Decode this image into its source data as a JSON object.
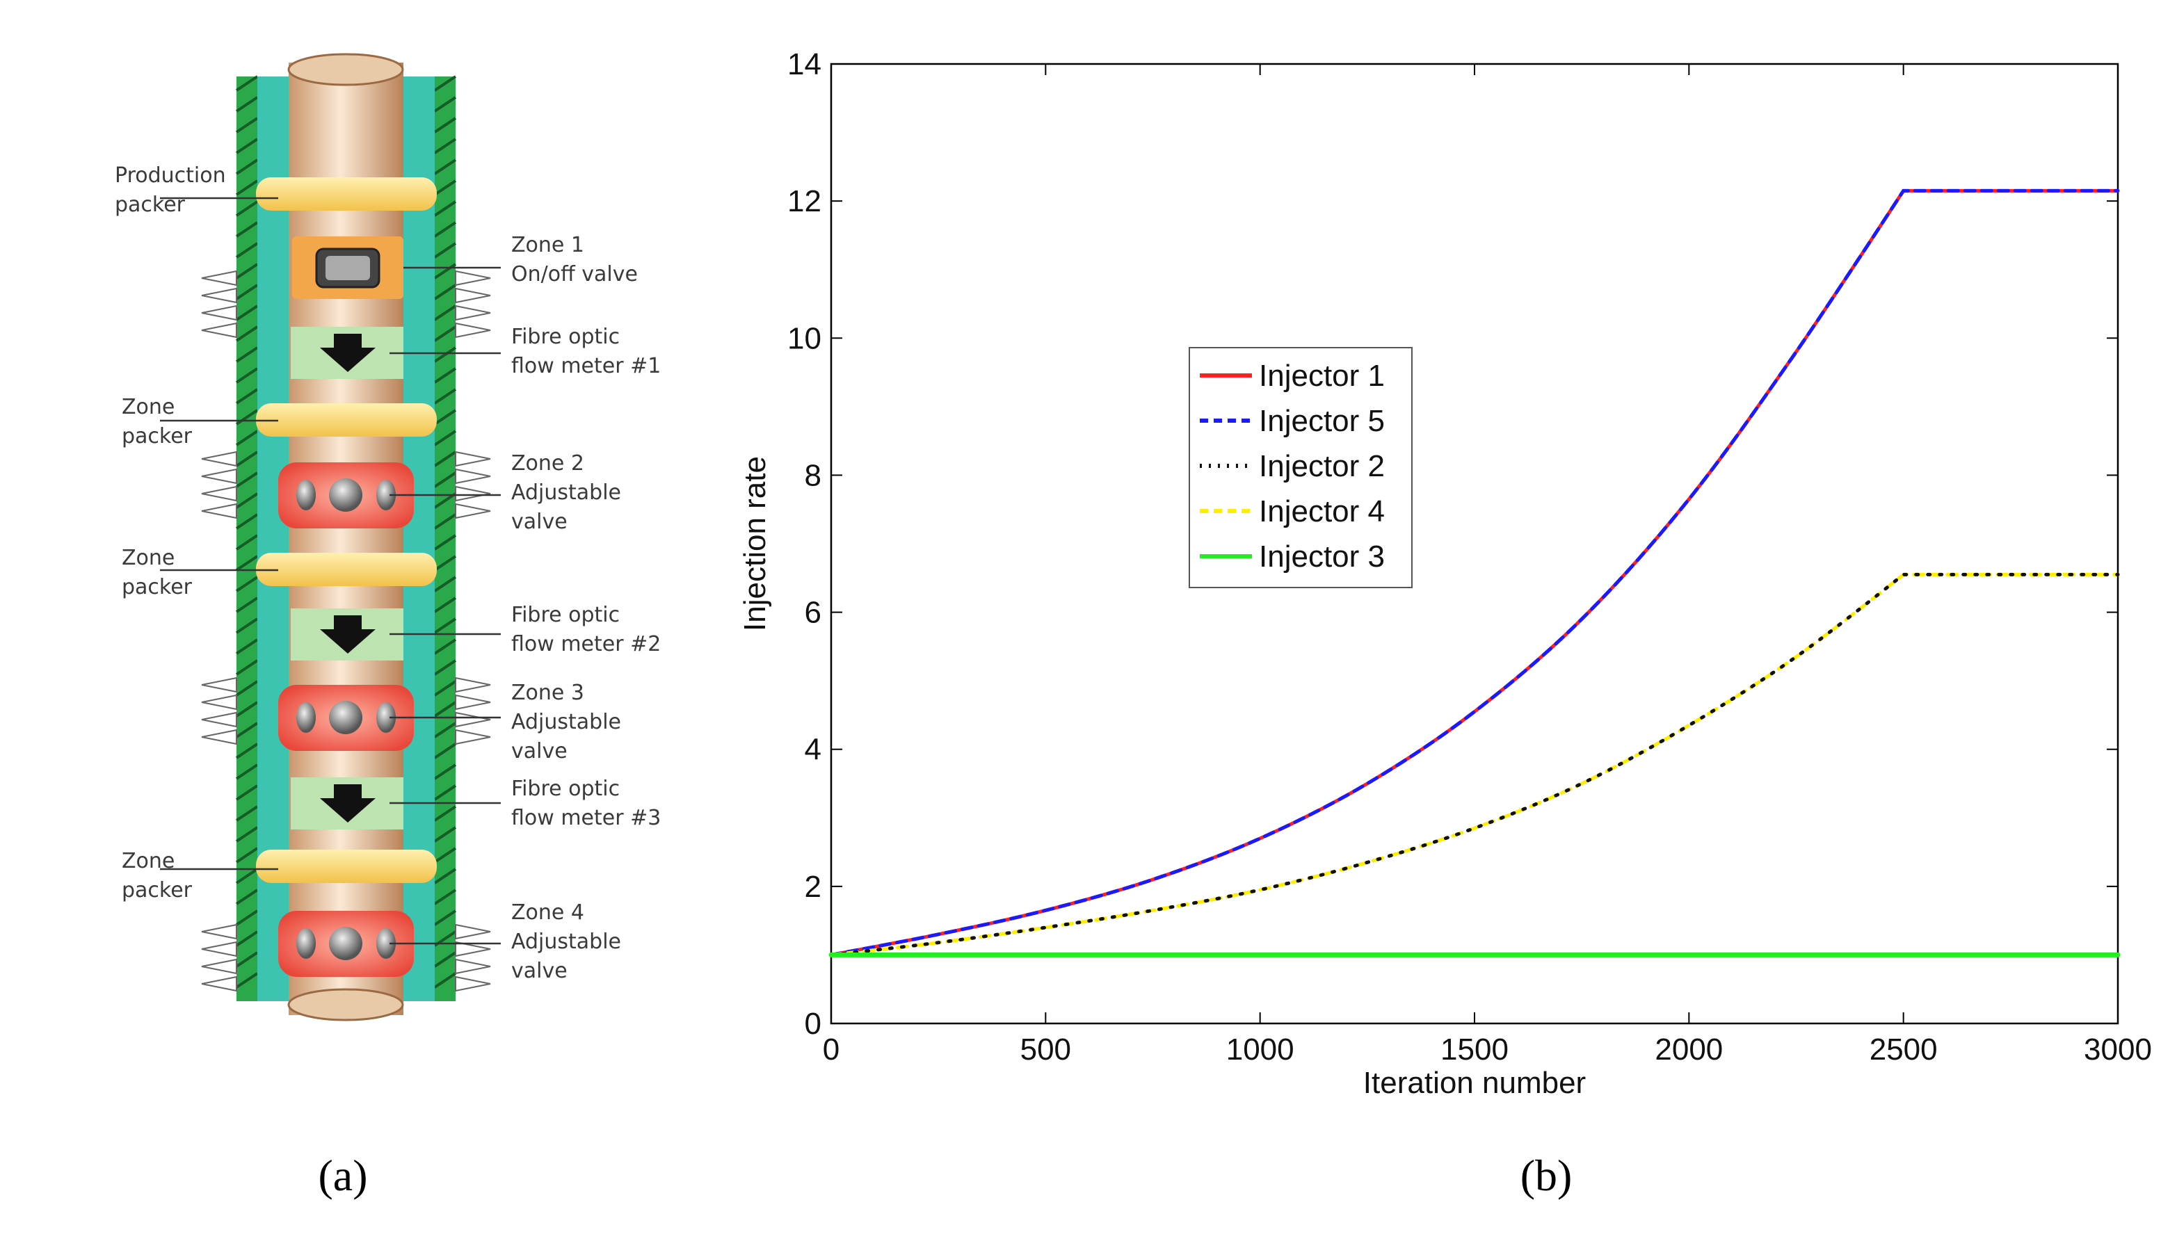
{
  "panels": {
    "a": "(a)",
    "b": "(b)"
  },
  "diagram": {
    "labels": {
      "production_packer": [
        "Production",
        "packer"
      ],
      "zone_packer_1": [
        "Zone",
        "packer"
      ],
      "zone_packer_2": [
        "Zone",
        "packer"
      ],
      "zone_packer_3": [
        "Zone",
        "packer"
      ],
      "zone1": [
        "Zone 1",
        "On/off valve"
      ],
      "flow1": [
        "Fibre optic",
        "flow meter #1"
      ],
      "zone2": [
        "Zone 2",
        "Adjustable",
        "valve"
      ],
      "flow2": [
        "Fibre optic",
        "flow meter #2"
      ],
      "zone3": [
        "Zone 3",
        "Adjustable",
        "valve"
      ],
      "flow3": [
        "Fibre optic",
        "flow meter #3"
      ],
      "zone4": [
        "Zone 4",
        "Adjustable",
        "valve"
      ]
    },
    "colors": {
      "casing": "#2ba84a",
      "annulus": "#3cc4b0",
      "tubing": "#e8c9a8",
      "packer": "#f7d26a",
      "onoff_valve": "#f4a64a",
      "adjustable_valve": "#f06a5e",
      "flow_meter": "#bde3b0"
    }
  },
  "chart_data": {
    "type": "line",
    "title": "",
    "xlabel": "Iteration number",
    "ylabel": "Injection rate",
    "xlim": [
      0,
      3000
    ],
    "ylim": [
      0,
      14
    ],
    "xticks": [
      0,
      500,
      1000,
      1500,
      2000,
      2500,
      3000
    ],
    "yticks": [
      0,
      2,
      4,
      6,
      8,
      10,
      12,
      14
    ],
    "grid": false,
    "legend_position": "center-left",
    "x": [
      0,
      250,
      500,
      750,
      1000,
      1250,
      1500,
      1750,
      2000,
      2250,
      2500,
      2750,
      3000
    ],
    "series": [
      {
        "name": "Injector 1",
        "color": "#ff2020",
        "style": "solid",
        "values": [
          1.0,
          1.3,
          1.65,
          2.1,
          2.7,
          3.5,
          4.55,
          5.9,
          7.65,
          9.8,
          12.15,
          12.15,
          12.15
        ]
      },
      {
        "name": "Injector 5",
        "color": "#1a1aff",
        "style": "dashed",
        "values": [
          1.0,
          1.3,
          1.65,
          2.1,
          2.7,
          3.5,
          4.55,
          5.9,
          7.65,
          9.8,
          12.15,
          12.15,
          12.15
        ]
      },
      {
        "name": "Injector 2",
        "color": "#111111",
        "style": "dotted",
        "values": [
          1.0,
          1.18,
          1.4,
          1.65,
          1.95,
          2.35,
          2.85,
          3.5,
          4.35,
          5.35,
          6.55,
          6.55,
          6.55
        ]
      },
      {
        "name": "Injector 4",
        "color": "#ffee00",
        "style": "dashed",
        "values": [
          1.0,
          1.18,
          1.4,
          1.65,
          1.95,
          2.35,
          2.85,
          3.5,
          4.35,
          5.35,
          6.55,
          6.55,
          6.55
        ]
      },
      {
        "name": "Injector 3",
        "color": "#22ee22",
        "style": "solid",
        "values": [
          1.0,
          1.0,
          1.0,
          1.0,
          1.0,
          1.0,
          1.0,
          1.0,
          1.0,
          1.0,
          1.0,
          1.0,
          1.0
        ]
      }
    ]
  }
}
